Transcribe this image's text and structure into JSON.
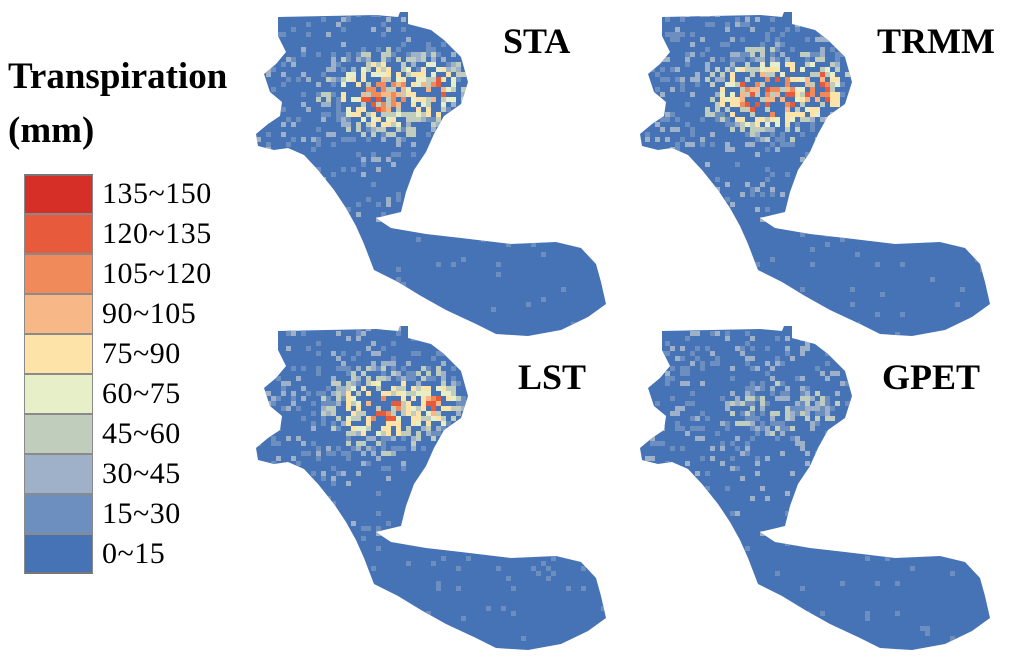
{
  "legend": {
    "title_line1": "Transpiration",
    "title_line2": "(mm)",
    "classes": [
      {
        "label": "135~150",
        "color": "#d62f27"
      },
      {
        "label": "120~135",
        "color": "#e75a3c"
      },
      {
        "label": "105~120",
        "color": "#f08a5a"
      },
      {
        "label": "90~105",
        "color": "#f8b786"
      },
      {
        "label": "75~90",
        "color": "#fde3a7"
      },
      {
        "label": "60~75",
        "color": "#e6efc7"
      },
      {
        "label": "45~60",
        "color": "#c0ccbc"
      },
      {
        "label": "30~45",
        "color": "#9eb1c8"
      },
      {
        "label": "15~30",
        "color": "#6c8fc0"
      },
      {
        "label": "0~15",
        "color": "#4672b6"
      }
    ]
  },
  "maps": [
    {
      "label": "STA",
      "intensity": 1.0
    },
    {
      "label": "TRMM",
      "intensity": 1.1
    },
    {
      "label": "LST",
      "intensity": 0.9
    },
    {
      "label": "GPET",
      "intensity": 0.4
    }
  ]
}
